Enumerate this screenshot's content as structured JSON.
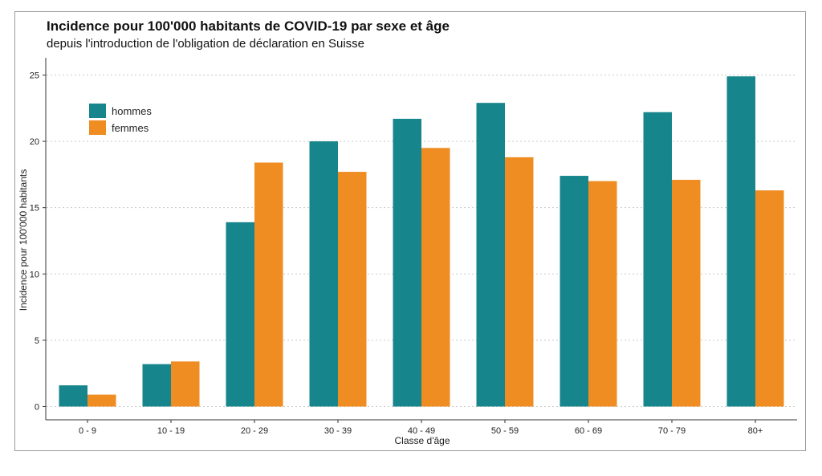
{
  "chart_data": {
    "type": "bar",
    "title": "Incidence pour 100'000 habitants de COVID-19 par sexe et âge",
    "subtitle": "depuis l'introduction de l'obligation de déclaration en Suisse",
    "xlabel": "Classe d'âge",
    "ylabel": "Incidence pour 100'000 habitants",
    "categories": [
      "0 - 9",
      "10 - 19",
      "20 - 29",
      "30 - 39",
      "40 - 49",
      "50 - 59",
      "60 - 69",
      "70 - 79",
      "80+"
    ],
    "series": [
      {
        "name": "hommes",
        "color": "#17858c",
        "values": [
          1.6,
          3.2,
          13.9,
          20.0,
          21.7,
          22.9,
          17.4,
          22.2,
          24.9
        ]
      },
      {
        "name": "femmes",
        "color": "#ef8c22",
        "values": [
          0.9,
          3.4,
          18.4,
          17.7,
          19.5,
          18.8,
          17.0,
          17.1,
          16.3
        ]
      }
    ],
    "yticks": [
      0,
      5,
      10,
      15,
      20,
      25
    ],
    "ylim": [
      -1,
      26.3
    ],
    "grid": "horizontal dotted",
    "legend_position": "top-left"
  }
}
